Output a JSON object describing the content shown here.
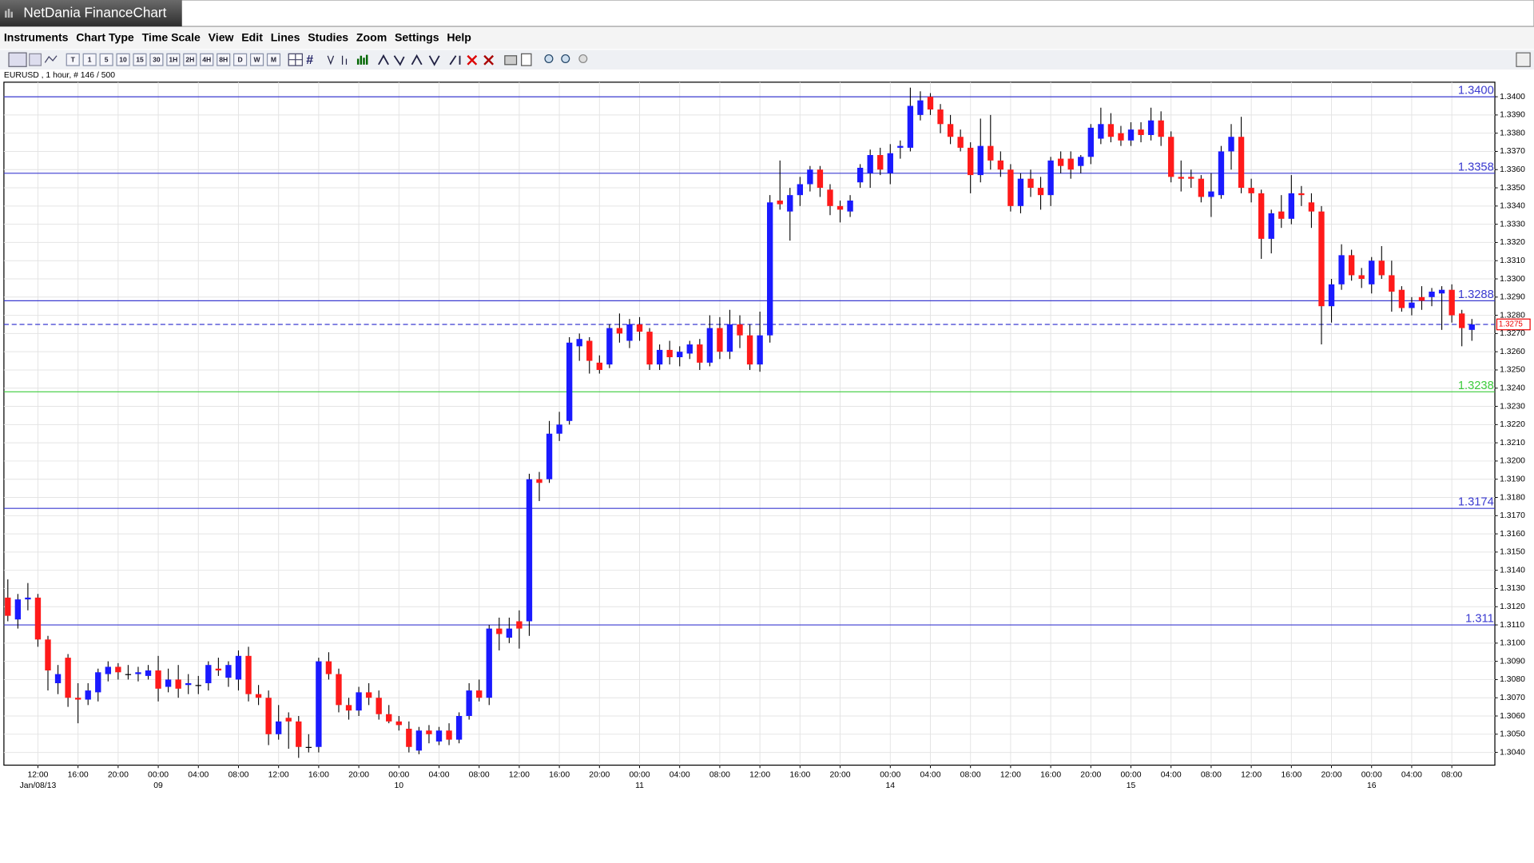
{
  "window": {
    "title": "NetDania FinanceChart"
  },
  "menu": [
    "Instruments",
    "Chart Type",
    "Time Scale",
    "View",
    "Edit",
    "Lines",
    "Studies",
    "Zoom",
    "Settings",
    "Help"
  ],
  "toolbar": [
    "T",
    "1",
    "5",
    "10",
    "15",
    "30",
    "1H",
    "2H",
    "4H",
    "8H",
    "D",
    "W",
    "M"
  ],
  "chart_data": {
    "type": "candlestick",
    "info": "EURUSD , 1 hour, # 146 / 500",
    "up_color": "#1a1aff",
    "down_color": "#ff1a1a",
    "grid": true,
    "ylim": [
      1.3033,
      1.3408
    ],
    "yticks": [
      {
        "value": 1.304,
        "label": "1.3040"
      },
      {
        "value": 1.305,
        "label": "1.3050"
      },
      {
        "value": 1.306,
        "label": "1.3060"
      },
      {
        "value": 1.307,
        "label": "1.3070"
      },
      {
        "value": 1.308,
        "label": "1.3080"
      },
      {
        "value": 1.309,
        "label": "1.3090"
      },
      {
        "value": 1.31,
        "label": "1.3100"
      },
      {
        "value": 1.311,
        "label": "1.3110"
      },
      {
        "value": 1.312,
        "label": "1.3120"
      },
      {
        "value": 1.313,
        "label": "1.3130"
      },
      {
        "value": 1.314,
        "label": "1.3140"
      },
      {
        "value": 1.315,
        "label": "1.3150"
      },
      {
        "value": 1.316,
        "label": "1.3160"
      },
      {
        "value": 1.317,
        "label": "1.3170"
      },
      {
        "value": 1.318,
        "label": "1.3180"
      },
      {
        "value": 1.319,
        "label": "1.3190"
      },
      {
        "value": 1.32,
        "label": "1.3200"
      },
      {
        "value": 1.321,
        "label": "1.3210"
      },
      {
        "value": 1.322,
        "label": "1.3220"
      },
      {
        "value": 1.323,
        "label": "1.3230"
      },
      {
        "value": 1.324,
        "label": "1.3240"
      },
      {
        "value": 1.325,
        "label": "1.3250"
      },
      {
        "value": 1.326,
        "label": "1.3260"
      },
      {
        "value": 1.327,
        "label": "1.3270"
      },
      {
        "value": 1.328,
        "label": "1.3280"
      },
      {
        "value": 1.329,
        "label": "1.3290"
      },
      {
        "value": 1.33,
        "label": "1.3300"
      },
      {
        "value": 1.331,
        "label": "1.3310"
      },
      {
        "value": 1.332,
        "label": "1.3320"
      },
      {
        "value": 1.333,
        "label": "1.3330"
      },
      {
        "value": 1.334,
        "label": "1.3340"
      },
      {
        "value": 1.335,
        "label": "1.3350"
      },
      {
        "value": 1.336,
        "label": "1.3360"
      },
      {
        "value": 1.337,
        "label": "1.3370"
      },
      {
        "value": 1.338,
        "label": "1.3380"
      },
      {
        "value": 1.339,
        "label": "1.3390"
      },
      {
        "value": 1.34,
        "label": "1.3400"
      }
    ],
    "levels": [
      {
        "value": 1.34,
        "label": "1.3400",
        "color": "#3a3ad0"
      },
      {
        "value": 1.3358,
        "color": "#3a3ad0"
      },
      {
        "value": 1.3288,
        "color": "#3a3ad0"
      },
      {
        "value": 1.3238,
        "color": "#3ccc3c"
      },
      {
        "value": 1.3174,
        "color": "#3a3ad0"
      },
      {
        "value": 1.311,
        "color": "#3a3ad0"
      }
    ],
    "last": 1.3275,
    "categories": [
      null,
      null,
      null,
      "12:00",
      null,
      null,
      null,
      "16:00",
      null,
      null,
      null,
      "20:00",
      null,
      null,
      null,
      "00:00",
      null,
      null,
      null,
      "04:00",
      null,
      null,
      null,
      "08:00",
      null,
      null,
      null,
      "12:00",
      null,
      null,
      null,
      "16:00",
      null,
      null,
      null,
      "20:00",
      null,
      null,
      null,
      "00:00",
      null,
      null,
      null,
      "04:00",
      null,
      null,
      null,
      "08:00",
      null,
      null,
      null,
      "12:00",
      null,
      null,
      null,
      "16:00",
      null,
      null,
      null,
      "20:00",
      null,
      null,
      null,
      "00:00",
      null,
      null,
      null,
      "04:00",
      null,
      null,
      null,
      "08:00",
      null,
      null,
      null,
      "12:00",
      null,
      null,
      null,
      "16:00",
      null,
      null,
      null,
      "20:00",
      null,
      null,
      null,
      null,
      "00:00",
      null,
      null,
      null,
      "04:00",
      null,
      null,
      null,
      "08:00",
      null,
      null,
      null,
      "12:00",
      null,
      null,
      null,
      "16:00",
      null,
      null,
      null,
      "20:00",
      null,
      null,
      null,
      "00:00",
      null,
      null,
      null,
      "04:00",
      null,
      null,
      null,
      "08:00",
      null,
      null,
      null,
      "12:00",
      null,
      null,
      null,
      "16:00",
      null,
      null,
      null,
      "20:00",
      null,
      null,
      null,
      "00:00",
      null,
      null,
      null,
      "04:00",
      null,
      null,
      null,
      "08:00",
      null,
      null
    ],
    "dates": [
      null,
      null,
      null,
      "Jan/08/13",
      null,
      null,
      null,
      null,
      null,
      null,
      null,
      null,
      null,
      null,
      null,
      "09",
      null,
      null,
      null,
      null,
      null,
      null,
      null,
      null,
      null,
      null,
      null,
      null,
      null,
      null,
      null,
      null,
      null,
      null,
      null,
      null,
      null,
      null,
      null,
      "10",
      null,
      null,
      null,
      null,
      null,
      null,
      null,
      null,
      null,
      null,
      null,
      null,
      null,
      null,
      null,
      null,
      null,
      null,
      null,
      null,
      null,
      null,
      null,
      "11",
      null,
      null,
      null,
      null,
      null,
      null,
      null,
      null,
      null,
      null,
      null,
      null,
      null,
      null,
      null,
      null,
      null,
      null,
      null,
      null,
      null,
      null,
      null,
      null,
      "14",
      null,
      null,
      null,
      null,
      null,
      null,
      null,
      null,
      null,
      null,
      null,
      null,
      null,
      null,
      null,
      null,
      null,
      null,
      null,
      null,
      null,
      null,
      null,
      "15",
      null,
      null,
      null,
      null,
      null,
      null,
      null,
      null,
      null,
      null,
      null,
      null,
      null,
      null,
      null,
      null,
      null,
      null,
      null,
      null,
      null,
      null,
      null,
      "16",
      null,
      null,
      null,
      null,
      null,
      null,
      null,
      null,
      null,
      null
    ],
    "candles": [
      [
        1.3125,
        1.3135,
        1.3112,
        1.3115
      ],
      [
        1.3113,
        1.3127,
        1.3108,
        1.3124
      ],
      [
        1.3124,
        1.3133,
        1.3118,
        1.3125
      ],
      [
        1.3125,
        1.3127,
        1.3098,
        1.3102
      ],
      [
        1.3102,
        1.3104,
        1.3074,
        1.3085
      ],
      [
        1.3078,
        1.3088,
        1.3072,
        1.3083
      ],
      [
        1.3092,
        1.3094,
        1.3065,
        1.307
      ],
      [
        1.307,
        1.3078,
        1.3056,
        1.3069
      ],
      [
        1.3069,
        1.3078,
        1.3066,
        1.3074
      ],
      [
        1.3073,
        1.3086,
        1.3068,
        1.3084
      ],
      [
        1.3083,
        1.309,
        1.3079,
        1.3087
      ],
      [
        1.3087,
        1.3089,
        1.308,
        1.3084
      ],
      [
        1.3083,
        1.3088,
        1.308,
        1.3083
      ],
      [
        1.3083,
        1.3087,
        1.3079,
        1.3084
      ],
      [
        1.3082,
        1.3088,
        1.308,
        1.3085
      ],
      [
        1.3085,
        1.3093,
        1.3068,
        1.3075
      ],
      [
        1.3076,
        1.3086,
        1.3073,
        1.308
      ],
      [
        1.308,
        1.3088,
        1.307,
        1.3075
      ],
      [
        1.3077,
        1.3083,
        1.3072,
        1.3078
      ],
      [
        1.3077,
        1.3082,
        1.3072,
        1.3077
      ],
      [
        1.3078,
        1.309,
        1.3074,
        1.3088
      ],
      [
        1.3086,
        1.3092,
        1.3082,
        1.3085
      ],
      [
        1.3081,
        1.309,
        1.3076,
        1.3088
      ],
      [
        1.308,
        1.3096,
        1.3074,
        1.3093
      ],
      [
        1.3093,
        1.3098,
        1.3068,
        1.3072
      ],
      [
        1.3072,
        1.3077,
        1.3066,
        1.307
      ],
      [
        1.307,
        1.3074,
        1.3044,
        1.305
      ],
      [
        1.305,
        1.3066,
        1.3047,
        1.3057
      ],
      [
        1.3059,
        1.3062,
        1.3042,
        1.3057
      ],
      [
        1.3057,
        1.306,
        1.3037,
        1.3043
      ],
      [
        1.3043,
        1.305,
        1.304,
        1.3043
      ],
      [
        1.3043,
        1.3092,
        1.304,
        1.309
      ],
      [
        1.309,
        1.3095,
        1.308,
        1.3083
      ],
      [
        1.3083,
        1.3086,
        1.3062,
        1.3066
      ],
      [
        1.3066,
        1.307,
        1.3058,
        1.3063
      ],
      [
        1.3063,
        1.3076,
        1.306,
        1.3073
      ],
      [
        1.3073,
        1.3078,
        1.3066,
        1.307
      ],
      [
        1.307,
        1.3074,
        1.3058,
        1.3061
      ],
      [
        1.3061,
        1.3066,
        1.3056,
        1.3057
      ],
      [
        1.3057,
        1.306,
        1.3052,
        1.3055
      ],
      [
        1.3053,
        1.3057,
        1.304,
        1.3043
      ],
      [
        1.3041,
        1.3054,
        1.3039,
        1.3052
      ],
      [
        1.3052,
        1.3055,
        1.3045,
        1.305
      ],
      [
        1.3046,
        1.3054,
        1.3044,
        1.3052
      ],
      [
        1.3052,
        1.3056,
        1.3044,
        1.3047
      ],
      [
        1.3047,
        1.3062,
        1.3045,
        1.306
      ],
      [
        1.306,
        1.3078,
        1.3058,
        1.3074
      ],
      [
        1.3074,
        1.308,
        1.3068,
        1.307
      ],
      [
        1.307,
        1.311,
        1.3066,
        1.3108
      ],
      [
        1.3108,
        1.3114,
        1.3096,
        1.3105
      ],
      [
        1.3103,
        1.3114,
        1.31,
        1.3108
      ],
      [
        1.3112,
        1.3118,
        1.3097,
        1.3108
      ],
      [
        1.3112,
        1.3193,
        1.3104,
        1.319
      ],
      [
        1.319,
        1.3194,
        1.3178,
        1.3188
      ],
      [
        1.319,
        1.3222,
        1.3188,
        1.3215
      ],
      [
        1.3215,
        1.3227,
        1.3211,
        1.322
      ],
      [
        1.3222,
        1.3268,
        1.322,
        1.3265
      ],
      [
        1.3263,
        1.327,
        1.3255,
        1.3267
      ],
      [
        1.3266,
        1.3268,
        1.3248,
        1.3255
      ],
      [
        1.3254,
        1.3258,
        1.3248,
        1.325
      ],
      [
        1.3253,
        1.3275,
        1.3251,
        1.3273
      ],
      [
        1.3273,
        1.3281,
        1.3265,
        1.327
      ],
      [
        1.3266,
        1.3278,
        1.3262,
        1.3275
      ],
      [
        1.3275,
        1.3279,
        1.3266,
        1.3271
      ],
      [
        1.3271,
        1.3273,
        1.325,
        1.3253
      ],
      [
        1.3253,
        1.3264,
        1.325,
        1.3261
      ],
      [
        1.3261,
        1.3266,
        1.3253,
        1.3257
      ],
      [
        1.3257,
        1.3263,
        1.3252,
        1.326
      ],
      [
        1.3259,
        1.3266,
        1.3256,
        1.3264
      ],
      [
        1.3264,
        1.3267,
        1.325,
        1.3254
      ],
      [
        1.3254,
        1.328,
        1.3252,
        1.3273
      ],
      [
        1.3273,
        1.3279,
        1.3256,
        1.326
      ],
      [
        1.326,
        1.3283,
        1.3256,
        1.3275
      ],
      [
        1.3275,
        1.328,
        1.3262,
        1.3269
      ],
      [
        1.3269,
        1.3275,
        1.325,
        1.3253
      ],
      [
        1.3253,
        1.3282,
        1.3249,
        1.3269
      ],
      [
        1.3269,
        1.3346,
        1.3265,
        1.3342
      ],
      [
        1.3343,
        1.3365,
        1.3338,
        1.3341
      ],
      [
        1.3337,
        1.335,
        1.3321,
        1.3346
      ],
      [
        1.3346,
        1.3356,
        1.334,
        1.3352
      ],
      [
        1.3352,
        1.3362,
        1.3348,
        1.336
      ],
      [
        1.336,
        1.3362,
        1.3345,
        1.335
      ],
      [
        1.3349,
        1.3352,
        1.3335,
        1.334
      ],
      [
        1.334,
        1.3343,
        1.3331,
        1.3338
      ],
      [
        1.3337,
        1.3346,
        1.3334,
        1.3343
      ],
      [
        1.3353,
        1.3363,
        1.335,
        1.3361
      ],
      [
        1.3358,
        1.3371,
        1.335,
        1.3368
      ],
      [
        1.3368,
        1.3372,
        1.3357,
        1.336
      ],
      [
        1.3358,
        1.3374,
        1.3352,
        1.3369
      ],
      [
        1.3372,
        1.3376,
        1.3366,
        1.3373
      ],
      [
        1.3372,
        1.3405,
        1.337,
        1.3395
      ],
      [
        1.339,
        1.3403,
        1.3387,
        1.3398
      ],
      [
        1.34,
        1.3402,
        1.339,
        1.3393
      ],
      [
        1.3393,
        1.3396,
        1.338,
        1.3385
      ],
      [
        1.3385,
        1.339,
        1.3374,
        1.3378
      ],
      [
        1.3378,
        1.3382,
        1.337,
        1.3372
      ],
      [
        1.3372,
        1.3375,
        1.3347,
        1.3357
      ],
      [
        1.3357,
        1.3388,
        1.3353,
        1.3373
      ],
      [
        1.3373,
        1.339,
        1.336,
        1.3365
      ],
      [
        1.3365,
        1.337,
        1.3356,
        1.336
      ],
      [
        1.336,
        1.3363,
        1.3337,
        1.334
      ],
      [
        1.334,
        1.3358,
        1.3336,
        1.3355
      ],
      [
        1.3355,
        1.336,
        1.3345,
        1.335
      ],
      [
        1.335,
        1.3356,
        1.3338,
        1.3346
      ],
      [
        1.3346,
        1.3367,
        1.334,
        1.3365
      ],
      [
        1.3366,
        1.337,
        1.3358,
        1.3362
      ],
      [
        1.3366,
        1.337,
        1.3355,
        1.336
      ],
      [
        1.3362,
        1.3368,
        1.3358,
        1.3367
      ],
      [
        1.3367,
        1.3385,
        1.3363,
        1.3383
      ],
      [
        1.3377,
        1.3394,
        1.3374,
        1.3385
      ],
      [
        1.3385,
        1.3391,
        1.3375,
        1.3378
      ],
      [
        1.338,
        1.3384,
        1.3373,
        1.3376
      ],
      [
        1.3376,
        1.3386,
        1.3373,
        1.3382
      ],
      [
        1.3382,
        1.3386,
        1.3375,
        1.3379
      ],
      [
        1.3379,
        1.3394,
        1.3376,
        1.3387
      ],
      [
        1.3387,
        1.3392,
        1.3373,
        1.3378
      ],
      [
        1.3378,
        1.3381,
        1.3353,
        1.3356
      ],
      [
        1.3356,
        1.3365,
        1.3348,
        1.3355
      ],
      [
        1.3356,
        1.336,
        1.335,
        1.3355
      ],
      [
        1.3355,
        1.3357,
        1.3342,
        1.3345
      ],
      [
        1.3345,
        1.3358,
        1.3334,
        1.3348
      ],
      [
        1.3346,
        1.3373,
        1.3344,
        1.337
      ],
      [
        1.337,
        1.3385,
        1.336,
        1.3378
      ],
      [
        1.3378,
        1.3389,
        1.3347,
        1.335
      ],
      [
        1.335,
        1.3355,
        1.3342,
        1.3347
      ],
      [
        1.3347,
        1.3349,
        1.3311,
        1.3322
      ],
      [
        1.3322,
        1.3338,
        1.3314,
        1.3336
      ],
      [
        1.3337,
        1.3346,
        1.3328,
        1.3333
      ],
      [
        1.3333,
        1.3357,
        1.333,
        1.3347
      ],
      [
        1.3347,
        1.3351,
        1.334,
        1.3346
      ],
      [
        1.3342,
        1.3347,
        1.3328,
        1.3337
      ],
      [
        1.3337,
        1.334,
        1.3264,
        1.3285
      ],
      [
        1.3285,
        1.33,
        1.3276,
        1.3297
      ],
      [
        1.3297,
        1.3319,
        1.3294,
        1.3313
      ],
      [
        1.3313,
        1.3316,
        1.3299,
        1.3302
      ],
      [
        1.3302,
        1.3306,
        1.3295,
        1.33
      ],
      [
        1.3297,
        1.3312,
        1.3292,
        1.331
      ],
      [
        1.331,
        1.3318,
        1.33,
        1.3302
      ],
      [
        1.3302,
        1.331,
        1.3282,
        1.3293
      ],
      [
        1.3294,
        1.3296,
        1.3282,
        1.3284
      ],
      [
        1.3284,
        1.329,
        1.328,
        1.3287
      ],
      [
        1.329,
        1.3296,
        1.3283,
        1.3288
      ],
      [
        1.329,
        1.3295,
        1.3285,
        1.3293
      ],
      [
        1.3292,
        1.3296,
        1.3272,
        1.3294
      ],
      [
        1.3294,
        1.3297,
        1.3276,
        1.328
      ],
      [
        1.3281,
        1.3283,
        1.3263,
        1.3273
      ],
      [
        1.3272,
        1.3278,
        1.3266,
        1.3275
      ]
    ]
  }
}
